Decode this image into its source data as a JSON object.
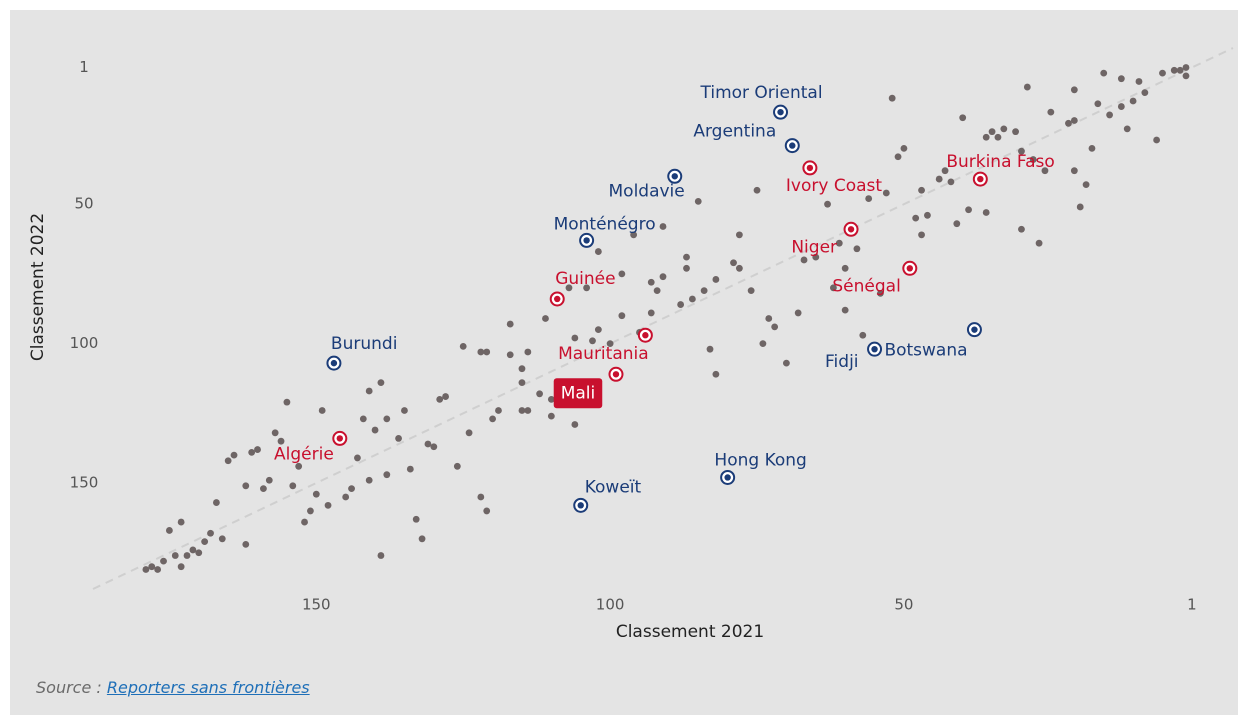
{
  "chart_data": {
    "type": "scatter",
    "xlabel": "Classement 2021",
    "ylabel": "Classement 2022",
    "xlim": [
      188,
      -6
    ],
    "ylim": [
      188,
      -6
    ],
    "xticks": [
      150,
      100,
      50,
      1
    ],
    "yticks": [
      1,
      50,
      100,
      150
    ],
    "reference_line": true,
    "points": {
      "color": "#6e6565",
      "x": [
        2,
        4,
        3,
        2,
        6,
        10,
        13,
        16,
        9,
        11,
        13,
        15,
        17,
        12,
        7,
        21,
        22,
        21,
        25,
        29,
        18,
        30,
        26,
        28,
        21,
        19,
        20,
        31,
        33,
        35,
        36,
        34,
        40,
        52,
        50,
        51,
        43,
        44,
        42,
        47,
        53,
        56,
        46,
        48,
        39,
        36,
        41,
        47,
        30,
        27,
        63,
        75,
        58,
        61,
        67,
        62,
        60,
        57,
        54,
        60,
        65,
        78,
        79,
        78,
        76,
        82,
        84,
        86,
        87,
        88,
        85,
        87,
        91,
        92,
        93,
        96,
        98,
        93,
        95,
        91,
        102,
        104,
        107,
        111,
        106,
        103,
        102,
        100,
        98,
        72,
        74,
        73,
        68,
        83,
        82,
        70,
        117,
        117,
        121,
        125,
        122,
        114,
        115,
        115,
        112,
        110,
        115,
        120,
        119,
        124,
        126,
        122,
        121,
        110,
        106,
        114,
        128,
        129,
        130,
        131,
        135,
        138,
        140,
        142,
        139,
        141,
        136,
        138,
        134,
        133,
        132,
        139,
        141,
        143,
        145,
        144,
        148,
        149,
        150,
        151,
        152,
        154,
        155,
        153,
        156,
        157,
        158,
        159,
        160,
        161,
        162,
        164,
        165,
        162,
        167,
        166,
        168,
        169,
        171,
        170,
        172,
        173,
        174,
        173,
        175,
        176,
        177,
        178,
        179
      ],
      "y": [
        1,
        2,
        2,
        4,
        3,
        6,
        5,
        3,
        10,
        13,
        15,
        18,
        14,
        23,
        27,
        20,
        21,
        9,
        17,
        8,
        30,
        31,
        38,
        34,
        38,
        43,
        51,
        24,
        23,
        24,
        26,
        26,
        19,
        12,
        30,
        33,
        38,
        41,
        42,
        45,
        46,
        48,
        54,
        55,
        52,
        53,
        57,
        61,
        59,
        64,
        50,
        45,
        66,
        64,
        70,
        80,
        88,
        97,
        82,
        73,
        69,
        61,
        71,
        73,
        81,
        77,
        81,
        84,
        73,
        86,
        49,
        69,
        76,
        81,
        78,
        61,
        75,
        89,
        96,
        58,
        67,
        80,
        80,
        91,
        98,
        99,
        95,
        100,
        90,
        94,
        100,
        91,
        89,
        102,
        111,
        107,
        93,
        104,
        103,
        101,
        103,
        103,
        109,
        114,
        118,
        120,
        124,
        127,
        124,
        132,
        144,
        155,
        160,
        126,
        129,
        124,
        119,
        120,
        137,
        136,
        124,
        127,
        131,
        127,
        114,
        117,
        134,
        147,
        145,
        163,
        170,
        176,
        149,
        141,
        155,
        152,
        158,
        124,
        154,
        160,
        164,
        151,
        121,
        144,
        135,
        132,
        149,
        152,
        138,
        139,
        151,
        140,
        142,
        172,
        157,
        170,
        168,
        171,
        174,
        175,
        176,
        164,
        176,
        180,
        167,
        178,
        181,
        180,
        181
      ]
    },
    "highlights": [
      {
        "label": "Timor Oriental",
        "x": 71,
        "y": 17,
        "color": "#1b3c78"
      },
      {
        "label": "Argentina",
        "x": 69,
        "y": 29,
        "color": "#1b3c78"
      },
      {
        "label": "Moldavie",
        "x": 89,
        "y": 40,
        "color": "#1b3c78"
      },
      {
        "label": "Monténégro",
        "x": 104,
        "y": 63,
        "color": "#1b3c78"
      },
      {
        "label": "Burundi",
        "x": 147,
        "y": 107,
        "color": "#1b3c78"
      },
      {
        "label": "Koweït",
        "x": 105,
        "y": 158,
        "color": "#1b3c78"
      },
      {
        "label": "Hong Kong",
        "x": 80,
        "y": 148,
        "color": "#1b3c78"
      },
      {
        "label": "Botswana",
        "x": 38,
        "y": 95,
        "color": "#1b3c78"
      },
      {
        "label": "Fidji",
        "x": 55,
        "y": 102,
        "color": "#1b3c78"
      },
      {
        "label": "Burkina Faso",
        "x": 37,
        "y": 41,
        "color": "#c8102e"
      },
      {
        "label": "Ivory Coast",
        "x": 66,
        "y": 37,
        "color": "#c8102e"
      },
      {
        "label": "Niger",
        "x": 59,
        "y": 59,
        "color": "#c8102e"
      },
      {
        "label": "Sénégal",
        "x": 49,
        "y": 73,
        "color": "#c8102e"
      },
      {
        "label": "Guinée",
        "x": 109,
        "y": 84,
        "color": "#c8102e"
      },
      {
        "label": "Mauritania",
        "x": 94,
        "y": 97,
        "color": "#c8102e"
      },
      {
        "label": "Mali",
        "x": 99,
        "y": 111,
        "color": "#c8102e"
      },
      {
        "label": "Algérie",
        "x": 146,
        "y": 134,
        "color": "#c8102e"
      }
    ]
  },
  "source": {
    "prefix": "Source :",
    "link": "Reporters sans frontières"
  }
}
